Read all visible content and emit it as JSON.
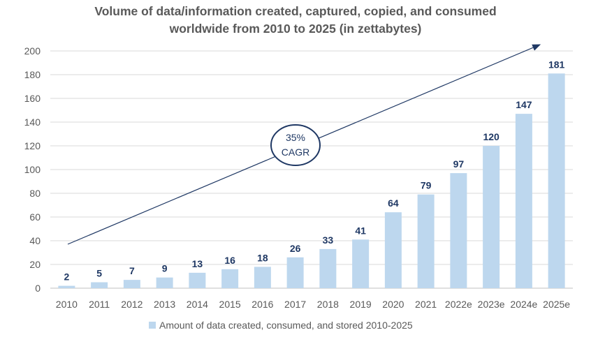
{
  "chart_data": {
    "type": "bar",
    "title": [
      "Volume of data/information created, captured, copied, and consumed",
      "worldwide from 2010 to 2025 (in zettabytes)"
    ],
    "categories": [
      "2010",
      "2011",
      "2012",
      "2013",
      "2014",
      "2015",
      "2016",
      "2017",
      "2018",
      "2019",
      "2020",
      "2021",
      "2022e",
      "2023e",
      "2024e",
      "2025e"
    ],
    "series": [
      {
        "name": "Amount of data created, consumed, and stored 2010-2025",
        "values": [
          2,
          5,
          7,
          9,
          13,
          16,
          18,
          26,
          33,
          41,
          64,
          79,
          97,
          120,
          147,
          181
        ],
        "color": "#bdd7ee"
      }
    ],
    "ylim": [
      0,
      200
    ],
    "yticks": [
      0,
      20,
      40,
      60,
      80,
      100,
      120,
      140,
      160,
      180,
      200
    ],
    "grid": true,
    "legend": "bottom",
    "annotation": {
      "line1": "35%",
      "line2": "CAGR"
    },
    "label_color": "#1f3864"
  }
}
